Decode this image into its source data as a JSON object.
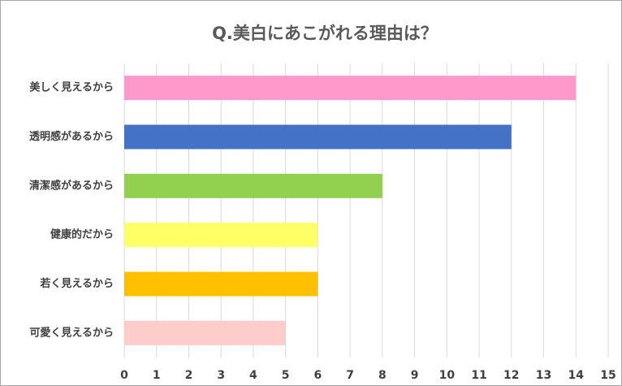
{
  "chart_data": {
    "type": "bar",
    "orientation": "horizontal",
    "title": "Q.美白にあこがれる理由は？",
    "categories": [
      "美しく見えるから",
      "透明感があるから",
      "清潔感があるから",
      "健康的だから",
      "若く見えるから",
      "可愛く見えるから"
    ],
    "values": [
      14,
      12,
      8,
      6,
      6,
      5
    ],
    "colors": [
      "#ff99cc",
      "#4472c4",
      "#92d050",
      "#ffff66",
      "#ffc000",
      "#ffcccc"
    ],
    "xlim": [
      0,
      15
    ],
    "xticks": [
      0,
      1,
      2,
      3,
      4,
      5,
      6,
      7,
      8,
      9,
      10,
      11,
      12,
      13,
      14,
      15
    ],
    "grid": true
  }
}
